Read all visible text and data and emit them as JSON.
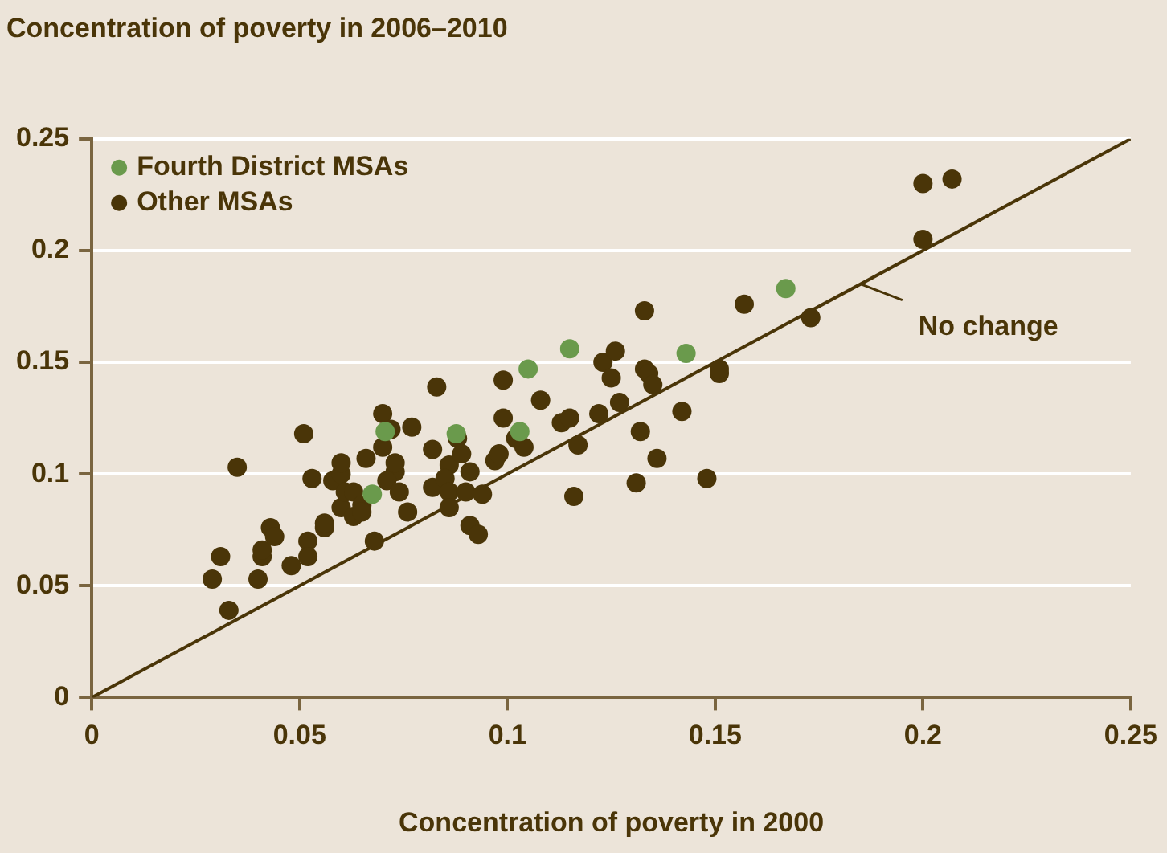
{
  "chart_data": {
    "type": "scatter",
    "ylabel": "Concentration of poverty in 2006–2010",
    "xlabel": "Concentration of poverty in 2000",
    "xlim": [
      0,
      0.25
    ],
    "xticks": [
      0,
      0.05,
      0.1,
      0.15,
      0.2,
      0.25
    ],
    "ylim": [
      0,
      0.25
    ],
    "yticks": [
      0,
      0.05,
      0.1,
      0.15,
      0.2,
      0.25
    ],
    "grid": "y",
    "legend": "top left",
    "marker": "circle",
    "annotations": [
      {
        "text": "No change",
        "x": 0.185,
        "y": 0.185
      }
    ],
    "series": [
      {
        "name": "Fourth District MSAs",
        "color": "#6a9a4c",
        "x": [
          0.0706,
          0.0675,
          0.0877,
          0.105,
          0.115,
          0.103,
          0.143,
          0.167
        ],
        "values": [
          0.119,
          0.091,
          0.118,
          0.147,
          0.156,
          0.119,
          0.154,
          0.183
        ]
      },
      {
        "name": "Other MSAs",
        "color": "#4a3508",
        "x": [
          0.029,
          0.031,
          0.033,
          0.035,
          0.04,
          0.041,
          0.041,
          0.043,
          0.044,
          0.048,
          0.051,
          0.052,
          0.052,
          0.053,
          0.056,
          0.056,
          0.058,
          0.06,
          0.06,
          0.06,
          0.061,
          0.063,
          0.063,
          0.065,
          0.065,
          0.066,
          0.068,
          0.07,
          0.07,
          0.072,
          0.073,
          0.073,
          0.071,
          0.077,
          0.076,
          0.074,
          0.083,
          0.082,
          0.082,
          0.086,
          0.085,
          0.086,
          0.086,
          0.088,
          0.089,
          0.09,
          0.091,
          0.093,
          0.091,
          0.094,
          0.097,
          0.098,
          0.099,
          0.099,
          0.102,
          0.104,
          0.108,
          0.113,
          0.115,
          0.117,
          0.116,
          0.123,
          0.126,
          0.125,
          0.122,
          0.127,
          0.132,
          0.131,
          0.133,
          0.133,
          0.134,
          0.135,
          0.136,
          0.142,
          0.148,
          0.151,
          0.151,
          0.157,
          0.173,
          0.2,
          0.2,
          0.207
        ],
        "values": [
          0.053,
          0.063,
          0.039,
          0.103,
          0.053,
          0.063,
          0.066,
          0.076,
          0.072,
          0.059,
          0.118,
          0.07,
          0.063,
          0.098,
          0.076,
          0.078,
          0.097,
          0.1,
          0.105,
          0.085,
          0.092,
          0.081,
          0.092,
          0.086,
          0.083,
          0.107,
          0.07,
          0.127,
          0.112,
          0.12,
          0.101,
          0.105,
          0.097,
          0.121,
          0.083,
          0.092,
          0.139,
          0.111,
          0.094,
          0.104,
          0.098,
          0.092,
          0.085,
          0.116,
          0.109,
          0.092,
          0.077,
          0.073,
          0.101,
          0.091,
          0.106,
          0.109,
          0.142,
          0.125,
          0.116,
          0.112,
          0.133,
          0.123,
          0.125,
          0.113,
          0.09,
          0.15,
          0.155,
          0.143,
          0.127,
          0.132,
          0.119,
          0.096,
          0.173,
          0.147,
          0.145,
          0.14,
          0.107,
          0.128,
          0.098,
          0.145,
          0.147,
          0.176,
          0.17,
          0.205,
          0.23,
          0.232
        ]
      },
      {
        "type": "line",
        "color": "#4a3508",
        "x": [
          0,
          0.25
        ],
        "values": [
          0,
          0.25
        ],
        "marker": "none",
        "line_style": "solid"
      }
    ]
  }
}
